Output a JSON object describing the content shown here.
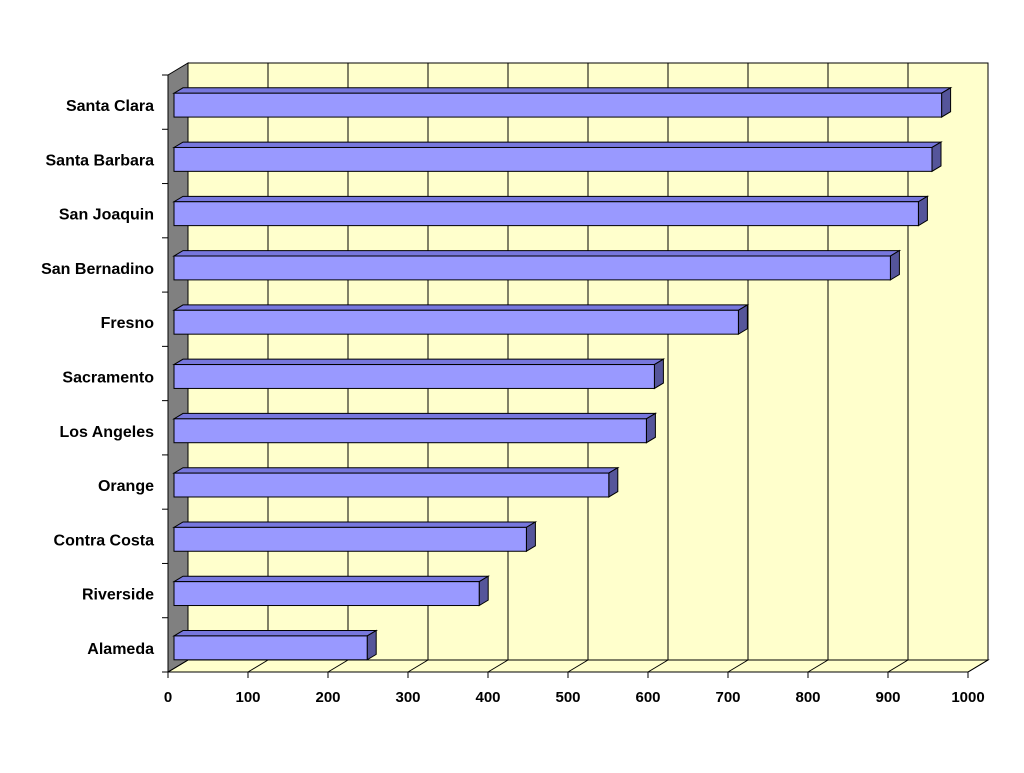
{
  "chart_data": {
    "type": "bar",
    "orientation": "horizontal",
    "style": "3d",
    "title": "",
    "xlabel": "",
    "ylabel": "",
    "categories": [
      "Santa Clara",
      "Santa Barbara",
      "San Joaquin",
      "San Bernadino",
      "Fresno",
      "Sacramento",
      "Los Angeles",
      "Orange",
      "Contra Costa",
      "Riverside",
      "Alameda"
    ],
    "values": [
      967,
      955,
      938,
      903,
      713,
      608,
      598,
      551,
      448,
      389,
      249
    ],
    "xlim": [
      0,
      1000
    ],
    "x_ticks": [
      "0",
      "100",
      "200",
      "300",
      "400",
      "500",
      "600",
      "700",
      "800",
      "900",
      "1000"
    ],
    "grid": "vertical",
    "legend": "none"
  },
  "colors": {
    "plot_back_wall": "#ffffcc",
    "side_wall": "#808080",
    "bar_front": "#9999ff",
    "bar_top": "#7777dd",
    "bar_side": "#55559a",
    "gridline": "#000000"
  }
}
